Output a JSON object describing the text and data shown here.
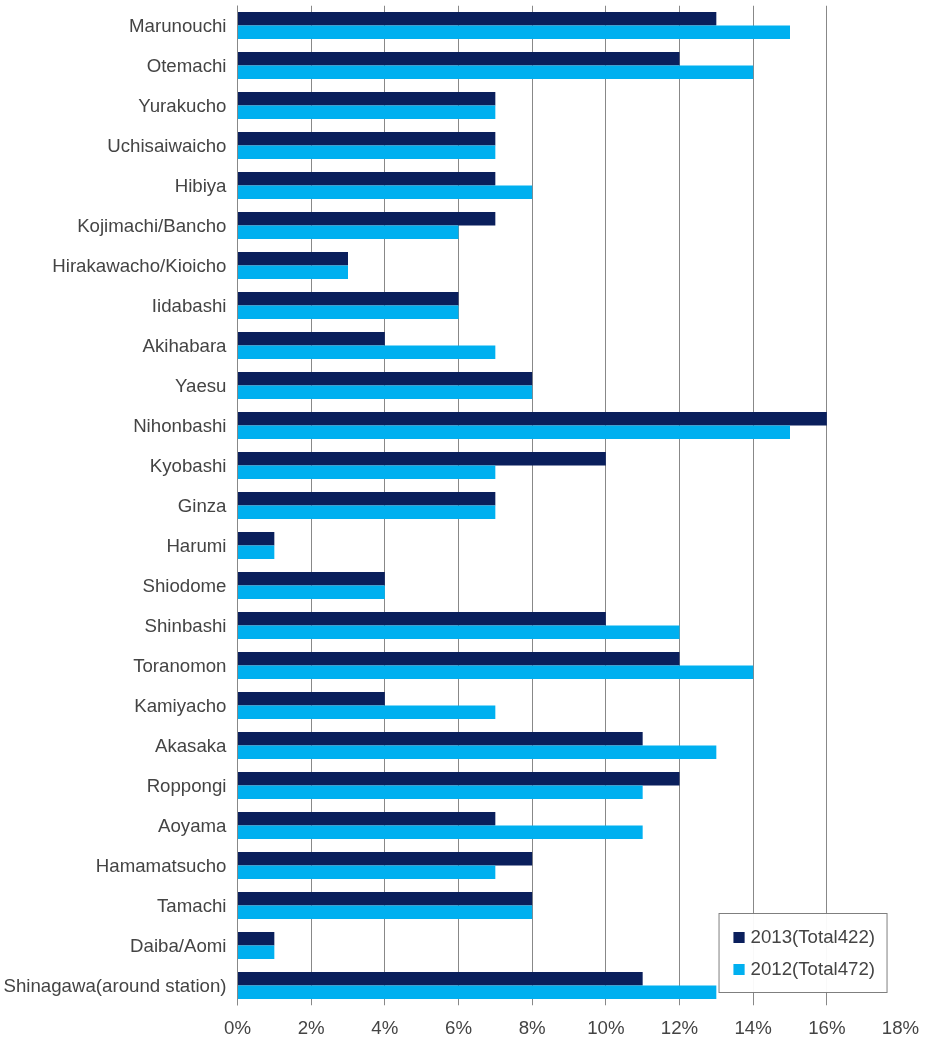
{
  "chart_data": {
    "type": "bar",
    "orientation": "horizontal",
    "categories": [
      "Marunouchi",
      "Otemachi",
      "Yurakucho",
      "Uchisaiwaicho",
      "Hibiya",
      "Kojimachi/Bancho",
      "Hirakawacho/Kioicho",
      "Iidabashi",
      "Akihabara",
      "Yaesu",
      "Nihonbashi",
      "Kyobashi",
      "Ginza",
      "Harumi",
      "Shiodome",
      "Shinbashi",
      "Toranomon",
      "Kamiyacho",
      "Akasaka",
      "Roppongi",
      "Aoyama",
      "Hamamatsucho",
      "Tamachi",
      "Daiba/Aomi",
      "Shinagawa(around station)"
    ],
    "series": [
      {
        "name": "2013(Total422)",
        "color": "#0a1f5c",
        "values": [
          13,
          12,
          7,
          7,
          7,
          7,
          3,
          6,
          4,
          8,
          16,
          10,
          7,
          1,
          4,
          10,
          12,
          4,
          11,
          12,
          7,
          8,
          8,
          1,
          11
        ]
      },
      {
        "name": "2012(Total472)",
        "color": "#00b0f0",
        "values": [
          15,
          14,
          7,
          7,
          8,
          6,
          3,
          6,
          7,
          8,
          15,
          7,
          7,
          1,
          4,
          12,
          14,
          7,
          13,
          11,
          11,
          7,
          8,
          1,
          13
        ]
      }
    ],
    "xlim": [
      0,
      18
    ],
    "xticks": [
      {
        "value": 0,
        "label": "0%"
      },
      {
        "value": 2,
        "label": "2%"
      },
      {
        "value": 4,
        "label": "4%"
      },
      {
        "value": 6,
        "label": "6%"
      },
      {
        "value": 8,
        "label": "8%"
      },
      {
        "value": 10,
        "label": "10%"
      },
      {
        "value": 12,
        "label": "12%"
      },
      {
        "value": 14,
        "label": "14%"
      },
      {
        "value": 16,
        "label": "16%"
      },
      {
        "value": 18,
        "label": "18%"
      }
    ],
    "grid": "x",
    "legend": "bottom right"
  }
}
